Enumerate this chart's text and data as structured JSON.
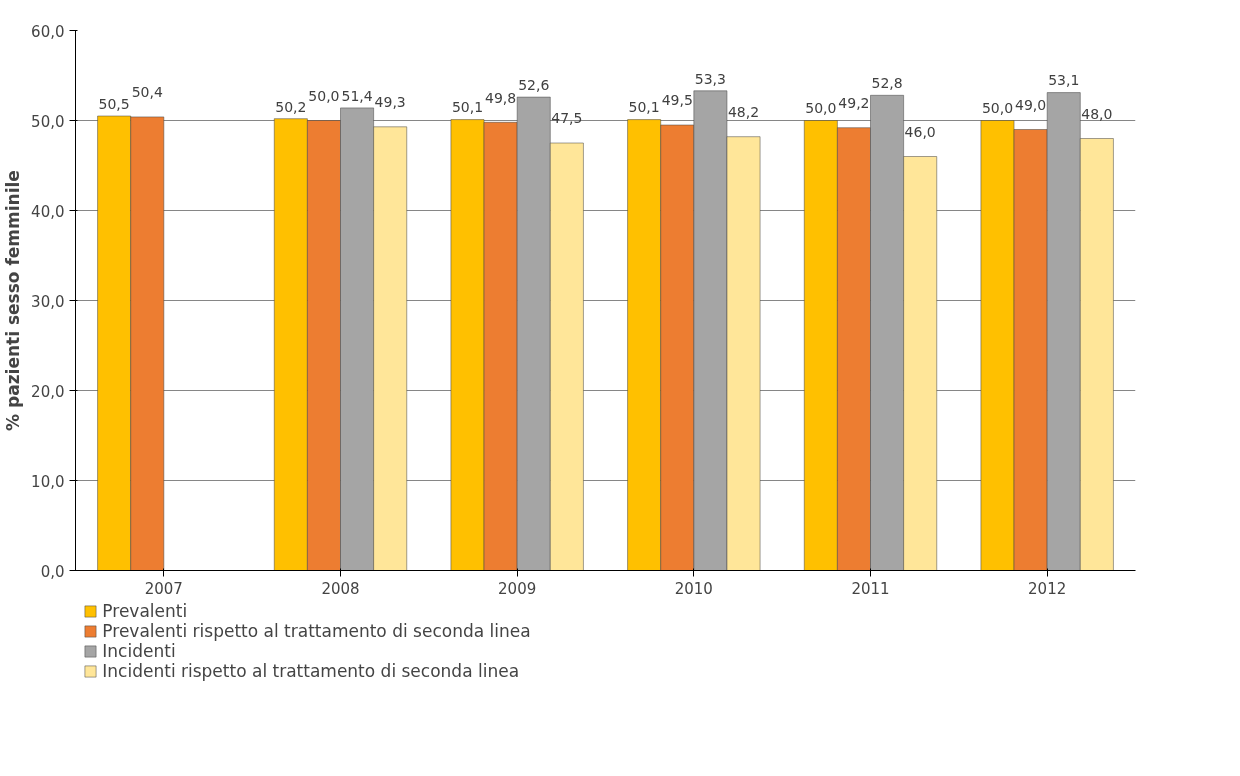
{
  "chart_data": {
    "type": "bar",
    "ylabel": "% pazienti sesso femminile",
    "categories": [
      "2007",
      "2008",
      "2009",
      "2010",
      "2011",
      "2012"
    ],
    "ylim": [
      0,
      60
    ],
    "yticks": [
      {
        "value": 0,
        "label": "0,0"
      },
      {
        "value": 10,
        "label": "10,0"
      },
      {
        "value": 20,
        "label": "20,0"
      },
      {
        "value": 30,
        "label": "30,0"
      },
      {
        "value": 40,
        "label": "40,0"
      },
      {
        "value": 50,
        "label": "50,0"
      },
      {
        "value": 60,
        "label": "60,0"
      }
    ],
    "grid": "y",
    "legend": "bottom",
    "series": [
      {
        "name": "Prevalenti",
        "color": "#ffc000",
        "values": [
          50.5,
          50.2,
          50.1,
          50.1,
          50.0,
          50.0
        ],
        "value_labels": [
          "50,5",
          "50,2",
          "50,1",
          "50,1",
          "50,0",
          "50,0"
        ]
      },
      {
        "name": "Prevalenti rispetto al trattamento di seconda linea",
        "color": "#ed7d31",
        "values": [
          50.4,
          50.0,
          49.8,
          49.5,
          49.2,
          49.0
        ],
        "value_labels": [
          "50,4",
          "50,0",
          "49,8",
          "49,5",
          "49,2",
          "49,0"
        ]
      },
      {
        "name": "Incidenti",
        "color": "#a5a5a5",
        "values": [
          null,
          51.4,
          52.6,
          53.3,
          52.8,
          53.1
        ],
        "value_labels": [
          null,
          "51,4",
          "52,6",
          "53,3",
          "52,8",
          "53,1"
        ]
      },
      {
        "name": "Incidenti rispetto al trattamento di seconda linea",
        "color": "#ffe699",
        "values": [
          null,
          49.3,
          47.5,
          48.2,
          46.0,
          48.0
        ],
        "value_labels": [
          null,
          "49,3",
          "47,5",
          "48,2",
          "46,0",
          "48,0"
        ]
      }
    ]
  }
}
